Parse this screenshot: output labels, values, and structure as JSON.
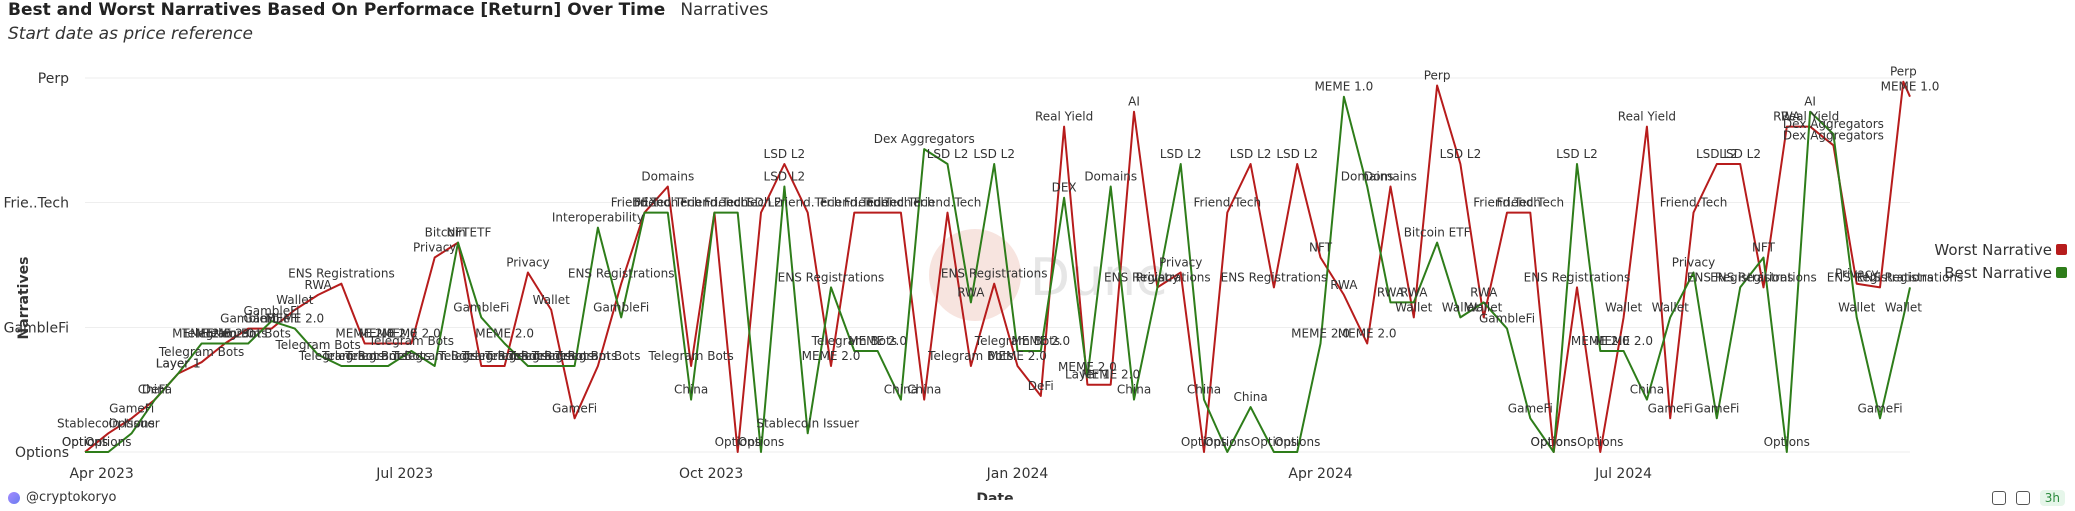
{
  "header": {
    "title": "Best and Worst Narratives Based On Performace [Return] Over Time",
    "tag": "Narratives",
    "caption": "Start date as price reference"
  },
  "footer": {
    "author": "@cryptokoryo",
    "refresh": "3h"
  },
  "watermark": "Dune",
  "chart_data": {
    "type": "line",
    "xlabel": "Date",
    "ylabel": "Narratives",
    "x_range": [
      "2023-03-27",
      "2024-09-25"
    ],
    "x_ticks": [
      "Apr 2023",
      "Jul 2023",
      "Oct 2023",
      "Jan 2024",
      "Apr 2024",
      "Jul 2024"
    ],
    "y_tick_labels": [
      "Options",
      "GambleFi",
      "Frie..Tech",
      "Perp"
    ],
    "y_range": [
      0,
      100
    ],
    "legend_position": "right",
    "colors": {
      "worst": "#b71c1c",
      "best": "#2e7d1a",
      "grid": "#eeeeee"
    },
    "series": [
      {
        "name": "Worst Narrative",
        "key": "worst",
        "points": [
          {
            "x": "2023-03-27",
            "y": 0,
            "label": "Options"
          },
          {
            "x": "2023-04-03",
            "y": 5,
            "label": "Stablecoin Issuer"
          },
          {
            "x": "2023-04-10",
            "y": 9,
            "label": "GameFi"
          },
          {
            "x": "2023-04-17",
            "y": 14,
            "label": "DeFi"
          },
          {
            "x": "2023-04-24",
            "y": 21,
            "label": "Layer 1"
          },
          {
            "x": "2023-05-01",
            "y": 24,
            "label": "Telegram Bots"
          },
          {
            "x": "2023-05-08",
            "y": 29,
            "label": "MEME 2.0"
          },
          {
            "x": "2023-05-15",
            "y": 33,
            "label": "GambleFi"
          },
          {
            "x": "2023-05-22",
            "y": 33,
            "label": "GambleFi"
          },
          {
            "x": "2023-05-29",
            "y": 38,
            "label": "Wallet"
          },
          {
            "x": "2023-06-05",
            "y": 42,
            "label": "RWA"
          },
          {
            "x": "2023-06-12",
            "y": 45,
            "label": "ENS Registrations"
          },
          {
            "x": "2023-06-19",
            "y": 29,
            "label": "MEME 2.0"
          },
          {
            "x": "2023-06-26",
            "y": 29,
            "label": "MEME 2.0"
          },
          {
            "x": "2023-07-03",
            "y": 29,
            "label": "MEME 2.0"
          },
          {
            "x": "2023-07-10",
            "y": 52,
            "label": "Privacy"
          },
          {
            "x": "2023-07-17",
            "y": 56,
            "label": "NFT"
          },
          {
            "x": "2023-07-24",
            "y": 23,
            "label": "Telegram Bots"
          },
          {
            "x": "2023-07-31",
            "y": 23,
            "label": "Telegram Bots"
          },
          {
            "x": "2023-08-07",
            "y": 48,
            "label": "Privacy"
          },
          {
            "x": "2023-08-14",
            "y": 38,
            "label": "Wallet"
          },
          {
            "x": "2023-08-21",
            "y": 9,
            "label": "GameFi"
          },
          {
            "x": "2023-08-28",
            "y": 23,
            "label": "Telegram Bots"
          },
          {
            "x": "2023-09-04",
            "y": 45,
            "label": "ENS Registrations"
          },
          {
            "x": "2023-09-11",
            "y": 64,
            "label": "DEX"
          },
          {
            "x": "2023-09-18",
            "y": 71,
            "label": "Domains"
          },
          {
            "x": "2023-09-25",
            "y": 23,
            "label": "Telegram Bots"
          },
          {
            "x": "2023-10-02",
            "y": 64,
            "label": "Friend.Tech"
          },
          {
            "x": "2023-10-09",
            "y": 0,
            "label": "Options"
          },
          {
            "x": "2023-10-16",
            "y": 64,
            "label": "LSD L2"
          },
          {
            "x": "2023-10-23",
            "y": 77,
            "label": "LSD L2"
          },
          {
            "x": "2023-10-30",
            "y": 64,
            "label": "Friend.Tech"
          },
          {
            "x": "2023-11-06",
            "y": 23,
            "label": "MEME 2.0"
          },
          {
            "x": "2023-11-13",
            "y": 64,
            "label": "Friend.Tech"
          },
          {
            "x": "2023-11-20",
            "y": 64,
            "label": "Friend.Tech"
          },
          {
            "x": "2023-11-27",
            "y": 64,
            "label": "Friend.Tech"
          },
          {
            "x": "2023-12-04",
            "y": 14,
            "label": "China"
          },
          {
            "x": "2023-12-11",
            "y": 64,
            "label": "Friend.Tech"
          },
          {
            "x": "2023-12-18",
            "y": 23,
            "label": "Telegram Bots"
          },
          {
            "x": "2023-12-25",
            "y": 45,
            "label": "ENS Registrations"
          },
          {
            "x": "2024-01-01",
            "y": 23,
            "label": "MEME 2.0"
          },
          {
            "x": "2024-01-08",
            "y": 15,
            "label": "DeFi"
          },
          {
            "x": "2024-01-15",
            "y": 87,
            "label": "Real Yield"
          },
          {
            "x": "2024-01-22",
            "y": 18,
            "label": "Layer 1"
          },
          {
            "x": "2024-01-29",
            "y": 18,
            "label": "MEME 2.0"
          },
          {
            "x": "2024-02-05",
            "y": 91,
            "label": "AI"
          },
          {
            "x": "2024-02-12",
            "y": 44,
            "label": "Privacy"
          },
          {
            "x": "2024-02-19",
            "y": 48,
            "label": "Privacy"
          },
          {
            "x": "2024-02-26",
            "y": 0,
            "label": "Options"
          },
          {
            "x": "2024-03-04",
            "y": 64,
            "label": "Friend.Tech"
          },
          {
            "x": "2024-03-11",
            "y": 77,
            "label": "LSD L2"
          },
          {
            "x": "2024-03-18",
            "y": 44,
            "label": "ENS Registrations"
          },
          {
            "x": "2024-03-25",
            "y": 77,
            "label": "LSD L2"
          },
          {
            "x": "2024-04-01",
            "y": 52,
            "label": "NFT"
          },
          {
            "x": "2024-04-08",
            "y": 42,
            "label": "RWA"
          },
          {
            "x": "2024-04-15",
            "y": 29,
            "label": "MEME 2.0"
          },
          {
            "x": "2024-04-22",
            "y": 71,
            "label": "Domains"
          },
          {
            "x": "2024-04-29",
            "y": 36,
            "label": "Wallet"
          },
          {
            "x": "2024-05-06",
            "y": 98,
            "label": "Perp"
          },
          {
            "x": "2024-05-13",
            "y": 77,
            "label": "LSD L2"
          },
          {
            "x": "2024-05-20",
            "y": 36,
            "label": "Wallet"
          },
          {
            "x": "2024-05-27",
            "y": 64,
            "label": "Friend.Tech"
          },
          {
            "x": "2024-06-03",
            "y": 64,
            "label": "Friend.Tech"
          },
          {
            "x": "2024-06-10",
            "y": 0,
            "label": "Options"
          },
          {
            "x": "2024-06-17",
            "y": 44,
            "label": "ENS Registrations"
          },
          {
            "x": "2024-06-24",
            "y": 0,
            "label": "Options"
          },
          {
            "x": "2024-07-01",
            "y": 36,
            "label": "Wallet"
          },
          {
            "x": "2024-07-08",
            "y": 87,
            "label": "Real Yield"
          },
          {
            "x": "2024-07-15",
            "y": 9,
            "label": "GameFi"
          },
          {
            "x": "2024-07-22",
            "y": 64,
            "label": "Friend.Tech"
          },
          {
            "x": "2024-07-29",
            "y": 77,
            "label": "LSD L2"
          },
          {
            "x": "2024-08-05",
            "y": 77,
            "label": "LSD L2"
          },
          {
            "x": "2024-08-12",
            "y": 44,
            "label": "ENS Registrations"
          },
          {
            "x": "2024-08-19",
            "y": 87,
            "label": "RWA"
          },
          {
            "x": "2024-08-26",
            "y": 87,
            "label": "Real Yield"
          },
          {
            "x": "2024-09-02",
            "y": 82,
            "label": "Dex Aggregators"
          },
          {
            "x": "2024-09-09",
            "y": 45,
            "label": "Privacy"
          },
          {
            "x": "2024-09-16",
            "y": 44,
            "label": "ENS Registrations"
          },
          {
            "x": "2024-09-23",
            "y": 99,
            "label": "Perp"
          },
          {
            "x": "2024-09-25",
            "y": 95,
            "label": "MEME 1.0"
          }
        ]
      },
      {
        "name": "Best Narrative",
        "key": "best",
        "points": [
          {
            "x": "2023-03-27",
            "y": 0,
            "label": "Options"
          },
          {
            "x": "2023-04-03",
            "y": 0,
            "label": "Options"
          },
          {
            "x": "2023-04-10",
            "y": 5,
            "label": "Options"
          },
          {
            "x": "2023-04-17",
            "y": 14,
            "label": "China"
          },
          {
            "x": "2023-04-24",
            "y": 21,
            "label": "Layer 1"
          },
          {
            "x": "2023-05-01",
            "y": 29,
            "label": "MEME 2.0"
          },
          {
            "x": "2023-05-08",
            "y": 29,
            "label": "Telegram Bots"
          },
          {
            "x": "2023-05-15",
            "y": 29,
            "label": "Telegram Bots"
          },
          {
            "x": "2023-05-22",
            "y": 35,
            "label": "GambleFi"
          },
          {
            "x": "2023-05-29",
            "y": 33,
            "label": "MEME 2.0"
          },
          {
            "x": "2023-06-05",
            "y": 26,
            "label": "Telegram Bots"
          },
          {
            "x": "2023-06-12",
            "y": 23,
            "label": "Telegram Bots"
          },
          {
            "x": "2023-06-19",
            "y": 23,
            "label": "Telegram Bots"
          },
          {
            "x": "2023-06-26",
            "y": 23,
            "label": "Telegram Bots"
          },
          {
            "x": "2023-07-03",
            "y": 27,
            "label": "Telegram Bots"
          },
          {
            "x": "2023-07-10",
            "y": 23,
            "label": "Telegram Bots"
          },
          {
            "x": "2023-07-17",
            "y": 56,
            "label": "Bitcoin ETF"
          },
          {
            "x": "2023-07-24",
            "y": 36,
            "label": "GambleFi"
          },
          {
            "x": "2023-07-31",
            "y": 29,
            "label": "MEME 2.0"
          },
          {
            "x": "2023-08-07",
            "y": 23,
            "label": "Telegram Bots"
          },
          {
            "x": "2023-08-14",
            "y": 23,
            "label": "Telegram Bots"
          },
          {
            "x": "2023-08-21",
            "y": 23,
            "label": "Telegram Bots"
          },
          {
            "x": "2023-08-28",
            "y": 60,
            "label": "Interoperability"
          },
          {
            "x": "2023-09-04",
            "y": 36,
            "label": "GambleFi"
          },
          {
            "x": "2023-09-11",
            "y": 64,
            "label": "Friend.Tech"
          },
          {
            "x": "2023-09-18",
            "y": 64,
            "label": "Friend.Tech"
          },
          {
            "x": "2023-09-25",
            "y": 14,
            "label": "China"
          },
          {
            "x": "2023-10-02",
            "y": 64,
            "label": "Friend.Tech"
          },
          {
            "x": "2023-10-09",
            "y": 64,
            "label": "Friend.Tech"
          },
          {
            "x": "2023-10-16",
            "y": 0,
            "label": "Options"
          },
          {
            "x": "2023-10-23",
            "y": 71,
            "label": "LSD L2"
          },
          {
            "x": "2023-10-30",
            "y": 5,
            "label": "Stablecoin Issuer"
          },
          {
            "x": "2023-11-06",
            "y": 44,
            "label": "ENS Registrations"
          },
          {
            "x": "2023-11-13",
            "y": 27,
            "label": "Telegram Bots"
          },
          {
            "x": "2023-11-20",
            "y": 27,
            "label": "MEME 2.0"
          },
          {
            "x": "2023-11-27",
            "y": 14,
            "label": "China"
          },
          {
            "x": "2023-12-04",
            "y": 81,
            "label": "Dex Aggregators"
          },
          {
            "x": "2023-12-11",
            "y": 77,
            "label": "LSD L2"
          },
          {
            "x": "2023-12-18",
            "y": 40,
            "label": "RWA"
          },
          {
            "x": "2023-12-25",
            "y": 77,
            "label": "LSD L2"
          },
          {
            "x": "2024-01-01",
            "y": 27,
            "label": "Telegram Bots"
          },
          {
            "x": "2024-01-08",
            "y": 27,
            "label": "MEME 2.0"
          },
          {
            "x": "2024-01-15",
            "y": 68,
            "label": "DEX"
          },
          {
            "x": "2024-01-22",
            "y": 20,
            "label": "MEME 2.0"
          },
          {
            "x": "2024-01-29",
            "y": 71,
            "label": "Domains"
          },
          {
            "x": "2024-02-05",
            "y": 14,
            "label": "China"
          },
          {
            "x": "2024-02-12",
            "y": 44,
            "label": "ENS Registrations"
          },
          {
            "x": "2024-02-19",
            "y": 77,
            "label": "LSD L2"
          },
          {
            "x": "2024-02-26",
            "y": 14,
            "label": "China"
          },
          {
            "x": "2024-03-04",
            "y": 0,
            "label": "Options"
          },
          {
            "x": "2024-03-11",
            "y": 12,
            "label": "China"
          },
          {
            "x": "2024-03-18",
            "y": 0,
            "label": "Options"
          },
          {
            "x": "2024-03-25",
            "y": 0,
            "label": "Options"
          },
          {
            "x": "2024-04-01",
            "y": 29,
            "label": "MEME 2.0"
          },
          {
            "x": "2024-04-08",
            "y": 95,
            "label": "MEME 1.0"
          },
          {
            "x": "2024-04-15",
            "y": 71,
            "label": "Domains"
          },
          {
            "x": "2024-04-22",
            "y": 40,
            "label": "RWA"
          },
          {
            "x": "2024-04-29",
            "y": 40,
            "label": "RWA"
          },
          {
            "x": "2024-05-06",
            "y": 56,
            "label": "Bitcoin ETF"
          },
          {
            "x": "2024-05-13",
            "y": 36,
            "label": "Wallet"
          },
          {
            "x": "2024-05-20",
            "y": 40,
            "label": "RWA"
          },
          {
            "x": "2024-05-27",
            "y": 33,
            "label": "GambleFi"
          },
          {
            "x": "2024-06-03",
            "y": 9,
            "label": "GameFi"
          },
          {
            "x": "2024-06-10",
            "y": 0,
            "label": "Options"
          },
          {
            "x": "2024-06-17",
            "y": 77,
            "label": "LSD L2"
          },
          {
            "x": "2024-06-24",
            "y": 27,
            "label": "MEME 2.0"
          },
          {
            "x": "2024-07-01",
            "y": 27,
            "label": "MEME 2.0"
          },
          {
            "x": "2024-07-08",
            "y": 14,
            "label": "China"
          },
          {
            "x": "2024-07-15",
            "y": 36,
            "label": "Wallet"
          },
          {
            "x": "2024-07-22",
            "y": 48,
            "label": "Privacy"
          },
          {
            "x": "2024-07-29",
            "y": 9,
            "label": "GameFi"
          },
          {
            "x": "2024-08-05",
            "y": 44,
            "label": "ENS Registrations"
          },
          {
            "x": "2024-08-12",
            "y": 52,
            "label": "NFT"
          },
          {
            "x": "2024-08-19",
            "y": 0,
            "label": "Options"
          },
          {
            "x": "2024-08-26",
            "y": 91,
            "label": "AI"
          },
          {
            "x": "2024-09-02",
            "y": 85,
            "label": "Dex Aggregators"
          },
          {
            "x": "2024-09-09",
            "y": 36,
            "label": "Wallet"
          },
          {
            "x": "2024-09-16",
            "y": 9,
            "label": "GameFi"
          },
          {
            "x": "2024-09-23",
            "y": 36,
            "label": "Wallet"
          },
          {
            "x": "2024-09-25",
            "y": 44,
            "label": "ENS Registrations"
          }
        ]
      }
    ]
  }
}
